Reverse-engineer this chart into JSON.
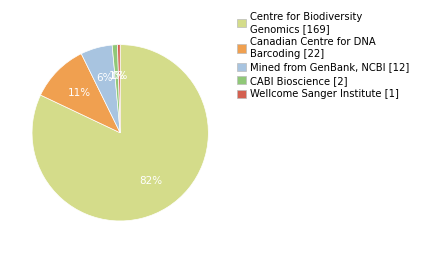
{
  "labels": [
    "Centre for Biodiversity\nGenomics [169]",
    "Canadian Centre for DNA\nBarcoding [22]",
    "Mined from GenBank, NCBI [12]",
    "CABI Bioscience [2]",
    "Wellcome Sanger Institute [1]"
  ],
  "values": [
    169,
    22,
    12,
    2,
    1
  ],
  "colors": [
    "#d4dc8a",
    "#f0a050",
    "#a8c4e0",
    "#90c878",
    "#d46050"
  ],
  "startangle": 90,
  "legend_fontsize": 7.2,
  "autopct_fontsize": 7.5,
  "background_color": "#ffffff"
}
